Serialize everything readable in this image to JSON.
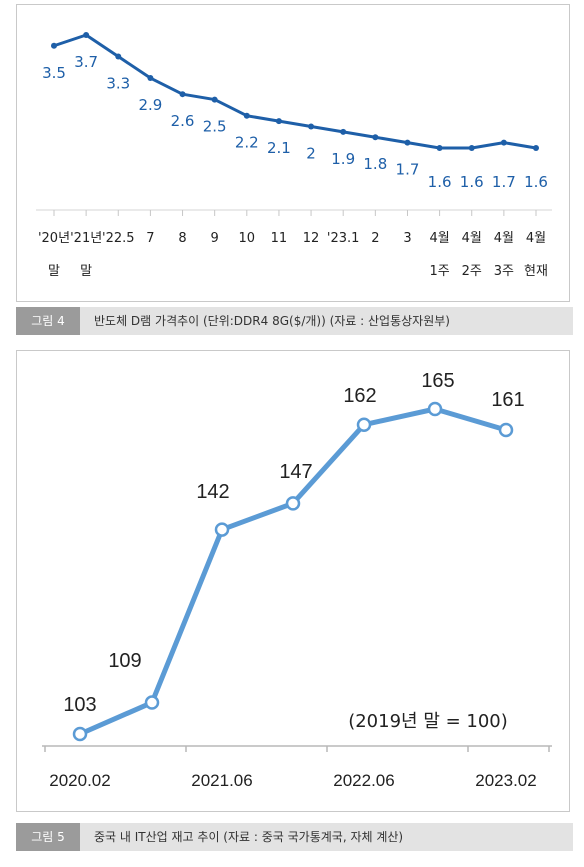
{
  "chart_data": [
    {
      "type": "line",
      "categories": [
        "'20년 말",
        "'21년 말",
        "'22.5",
        "7",
        "8",
        "9",
        "10",
        "11",
        "12",
        "'23.1",
        "2",
        "3",
        "4월 1주",
        "4월 2주",
        "4월 3주",
        "4월 현재"
      ],
      "tick_labels": [
        [
          "'20년",
          "말"
        ],
        [
          "'21년",
          "말"
        ],
        [
          "'22.5",
          ""
        ],
        [
          "7",
          ""
        ],
        [
          "8",
          ""
        ],
        [
          "9",
          ""
        ],
        [
          "10",
          ""
        ],
        [
          "11",
          ""
        ],
        [
          "12",
          ""
        ],
        [
          "'23.1",
          ""
        ],
        [
          "2",
          ""
        ],
        [
          "3",
          ""
        ],
        [
          "4월",
          "1주"
        ],
        [
          "4월",
          "2주"
        ],
        [
          "4월",
          "3주"
        ],
        [
          "4월",
          "현재"
        ]
      ],
      "values": [
        3.5,
        3.7,
        3.3,
        2.9,
        2.6,
        2.5,
        2.2,
        2.1,
        2,
        1.9,
        1.8,
        1.7,
        1.6,
        1.6,
        1.7,
        1.6
      ],
      "data_labels": [
        "3.5",
        "3.7",
        "3.3",
        "2.9",
        "2.6",
        "2.5",
        "2.2",
        "2.1",
        "2",
        "1.9",
        "1.8",
        "1.7",
        "1.6",
        "1.6",
        "1.7",
        "1.6"
      ],
      "line_color": "#1e5fa8",
      "caption_tag": "그림 4",
      "caption": "반도체 D램 가격추이 (단위:DDR4 8G($/개)) (자료 : 산업통상자원부)"
    },
    {
      "type": "line",
      "x_ticks": [
        "2020.02",
        "2021.06",
        "2022.06",
        "2023.02"
      ],
      "values": [
        103,
        109,
        142,
        147,
        162,
        165,
        161
      ],
      "data_labels": [
        "103",
        "109",
        "142",
        "147",
        "162",
        "165",
        "161"
      ],
      "annotation": "(2019년 말 = 100)",
      "line_color": "#5b9bd5",
      "caption_tag": "그림 5",
      "caption": "중국 내 IT산업 재고 추이 (자료 : 중국 국가통계국, 자체 계산)"
    }
  ]
}
